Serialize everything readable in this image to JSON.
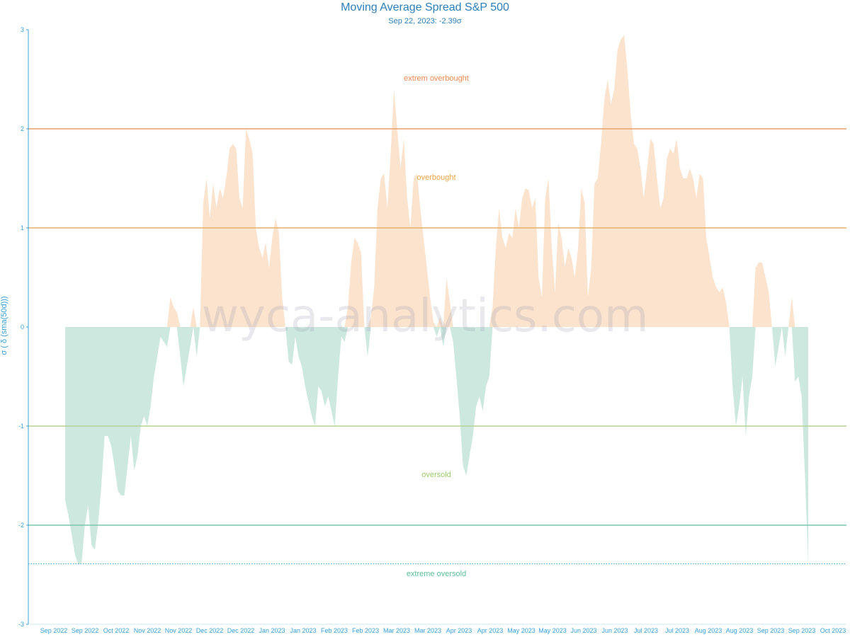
{
  "chart_data": {
    "type": "area",
    "title": "Moving Average Spread S&P 500",
    "subtitle": "Sep 22, 2023: -2.39σ",
    "ylabel": "σ ( δ (sma(50d)))",
    "watermark": "wyca-analytics.com",
    "ylim": [
      -3,
      3
    ],
    "yticks": [
      "3",
      "2",
      "1",
      "0",
      "-1",
      "-2",
      "-3"
    ],
    "xticks": [
      "Sep 2022",
      "Sep 2022",
      "Oct 2022",
      "Nov 2022",
      "Nov 2022",
      "Dec 2022",
      "Dec 2022",
      "Jan 2023",
      "Jan 2023",
      "Feb 2023",
      "Feb 2023",
      "Mar 2023",
      "Mar 2023",
      "Apr 2023",
      "Apr 2023",
      "May 2023",
      "May 2023",
      "Jun 2023",
      "Jun 2023",
      "Jul 2023",
      "Jul 2023",
      "Aug 2023",
      "Aug 2023",
      "Sep 2023",
      "Sep 2023",
      "Oct 2023"
    ],
    "reference_lines": [
      {
        "value": 2,
        "color": "#e8a16b"
      },
      {
        "value": 1,
        "color": "#e3b066"
      },
      {
        "value": -1,
        "color": "#b5d494"
      },
      {
        "value": -2,
        "color": "#7fc6a8"
      },
      {
        "value": -2.39,
        "color": "#3aa0d8",
        "style": "dotted"
      }
    ],
    "zones": [
      {
        "label": "extrem overbought",
        "value": 2.5,
        "color": "#ee8a55"
      },
      {
        "label": "overbought",
        "value": 1.5,
        "color": "#eda548"
      },
      {
        "label": "oversold",
        "value": -1.5,
        "color": "#9ccb6c"
      },
      {
        "label": "extreme oversold",
        "value": -2.5,
        "color": "#5fbf9a"
      }
    ],
    "colors": {
      "positive": "#fbe3cd",
      "negative": "#cde9df",
      "axis": "#3aa0d8"
    },
    "series": [
      {
        "values": [
          -1.75,
          -1.9,
          -2.1,
          -2.3,
          -2.4,
          -2.38,
          -2.0,
          -1.8,
          -2.2,
          -2.25,
          -2.0,
          -1.6,
          -1.1,
          -1.1,
          -1.2,
          -1.4,
          -1.65,
          -1.7,
          -1.7,
          -1.4,
          -1.1,
          -1.45,
          -1.3,
          -1.0,
          -0.9,
          -1.0,
          -0.8,
          -0.5,
          -0.3,
          -0.1,
          -0.15,
          -0.2,
          0.3,
          0.2,
          0.15,
          -0.3,
          -0.6,
          -0.4,
          -0.2,
          0.2,
          -0.3,
          0.0,
          1.25,
          1.5,
          1.1,
          1.45,
          1.2,
          1.4,
          1.3,
          1.5,
          1.8,
          1.85,
          1.8,
          1.3,
          1.2,
          2.0,
          1.9,
          1.75,
          1.0,
          0.8,
          0.7,
          0.85,
          0.6,
          0.9,
          1.1,
          0.95,
          0.3,
          0.0,
          -0.35,
          -0.38,
          -0.1,
          -0.3,
          -0.4,
          -0.6,
          -0.75,
          -0.9,
          -1.0,
          -0.6,
          -0.65,
          -0.8,
          -0.7,
          -0.85,
          -1.0,
          -0.5,
          -0.1,
          -0.15,
          0.2,
          0.65,
          0.9,
          0.85,
          0.75,
          0.0,
          -0.3,
          0.1,
          0.4,
          1.2,
          1.5,
          1.55,
          1.2,
          1.75,
          2.4,
          2.0,
          1.6,
          1.9,
          1.3,
          1.0,
          1.5,
          1.55,
          1.2,
          0.9,
          0.6,
          0.3,
          0.05,
          -0.1,
          0.1,
          -0.2,
          0.5,
          0.25,
          -0.15,
          -0.5,
          -0.9,
          -1.4,
          -1.5,
          -1.3,
          -1.1,
          -0.8,
          -0.7,
          -0.85,
          -0.6,
          -0.5,
          0.2,
          0.8,
          1.2,
          0.9,
          0.8,
          0.95,
          0.9,
          1.2,
          1.0,
          1.3,
          1.4,
          1.38,
          1.2,
          1.3,
          0.5,
          0.3,
          1.3,
          1.5,
          0.8,
          0.35,
          1.05,
          0.9,
          0.6,
          0.8,
          0.7,
          0.5,
          0.8,
          1.4,
          1.25,
          0.3,
          0.6,
          1.45,
          1.5,
          1.85,
          2.3,
          2.5,
          2.25,
          2.4,
          2.8,
          2.9,
          2.95,
          2.6,
          2.15,
          1.85,
          1.8,
          1.6,
          1.3,
          1.6,
          1.9,
          1.85,
          1.5,
          1.2,
          1.3,
          1.7,
          1.8,
          1.75,
          1.9,
          1.6,
          1.5,
          1.5,
          1.6,
          1.5,
          1.3,
          1.55,
          1.5,
          0.9,
          0.7,
          0.5,
          0.4,
          0.35,
          0.4,
          0.25,
          0.0,
          -0.6,
          -1.0,
          -0.8,
          -0.5,
          -1.1,
          -0.7,
          -0.5,
          0.6,
          0.65,
          0.65,
          0.5,
          0.35,
          0.0,
          -0.4,
          -0.2,
          0.0,
          -0.3,
          0.0,
          0.3,
          -0.55,
          -0.5,
          -0.7,
          -1.5,
          -2.39
        ]
      }
    ]
  }
}
